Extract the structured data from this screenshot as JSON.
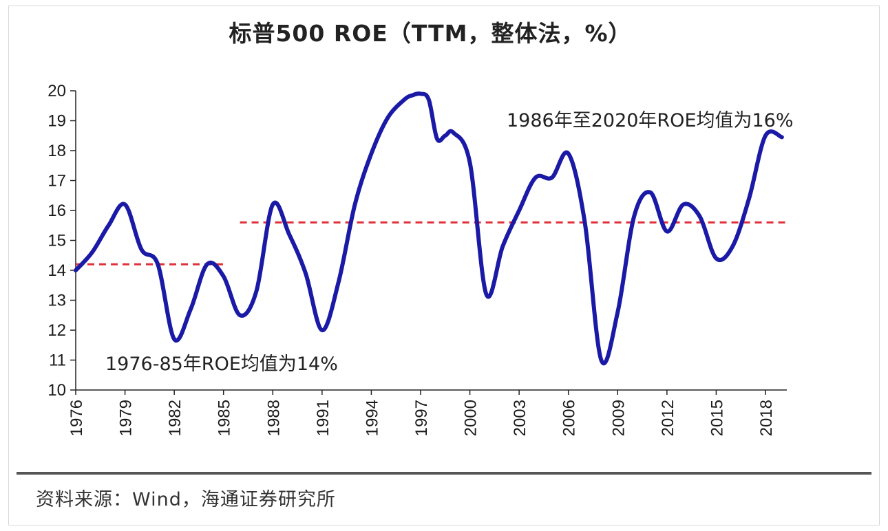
{
  "chart_data": {
    "type": "line",
    "title": "标普500 ROE（TTM，整体法，%）",
    "xlabel": "",
    "ylabel": "",
    "ylim": [
      10,
      20
    ],
    "yticks": [
      10,
      11,
      12,
      13,
      14,
      15,
      16,
      17,
      18,
      19,
      20
    ],
    "xticks": [
      1976,
      1979,
      1982,
      1985,
      1988,
      1991,
      1994,
      1997,
      2000,
      2003,
      2006,
      2009,
      2012,
      2015,
      2018
    ],
    "xlim": [
      1976,
      2019.3
    ],
    "series": [
      {
        "name": "标普500 ROE",
        "color": "#1a1aa6",
        "x": [
          1976,
          1977,
          1978,
          1979,
          1980,
          1981,
          1982,
          1983,
          1984,
          1985,
          1986,
          1987,
          1988,
          1989,
          1990,
          1991,
          1992,
          1993,
          1994,
          1995,
          1996,
          1996.5,
          1997,
          1997.5,
          1998,
          1998.5,
          1999,
          2000,
          2001,
          2002,
          2003,
          2004,
          2005,
          2006,
          2007,
          2008,
          2009,
          2010,
          2011,
          2012,
          2013,
          2014,
          2015,
          2016,
          2017,
          2018,
          2019
        ],
        "values": [
          14.0,
          14.6,
          15.5,
          16.2,
          14.7,
          14.2,
          11.7,
          12.7,
          14.2,
          13.8,
          12.5,
          13.3,
          16.2,
          15.2,
          13.9,
          12.0,
          13.6,
          16.2,
          17.9,
          19.1,
          19.7,
          19.85,
          19.9,
          19.7,
          18.4,
          18.5,
          18.6,
          17.6,
          13.2,
          14.8,
          16.0,
          17.1,
          17.1,
          17.9,
          15.6,
          11.0,
          12.6,
          15.8,
          16.6,
          15.3,
          16.2,
          15.8,
          14.4,
          14.8,
          16.4,
          18.5,
          18.45
        ]
      }
    ],
    "reference_lines": [
      {
        "label": "1976-85年ROE均值为14%",
        "value": 14.2,
        "x_start": 1976,
        "x_end": 1985.2,
        "color": "#e0303a"
      },
      {
        "label": "1986年至2020年ROE均值为16%",
        "value": 15.6,
        "x_start": 1986,
        "x_end": 2019.3,
        "color": "#e0303a"
      }
    ]
  },
  "annotations": {
    "early_mean": "1976-85年ROE均值为14%",
    "late_mean": "1986年至2020年ROE均值为16%"
  },
  "source": "资料来源：Wind，海通证券研究所"
}
